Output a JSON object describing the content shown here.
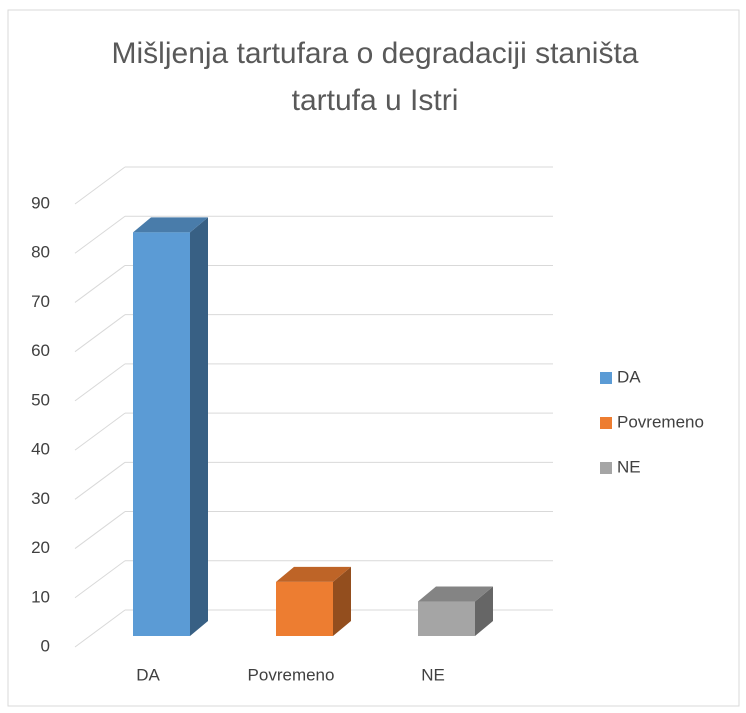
{
  "chart_data": {
    "type": "bar3d",
    "title": "Mišljenja tartufara o degradaciji staništa tartufa u Istri",
    "categories": [
      "DA",
      "Povremeno",
      "NE"
    ],
    "values": [
      82,
      11,
      7
    ],
    "colors": [
      "#5b9bd5",
      "#ed7d31",
      "#a5a5a5"
    ],
    "ylim": [
      0,
      90
    ],
    "yticks": [
      0,
      10,
      20,
      30,
      40,
      50,
      60,
      70,
      80,
      90
    ],
    "grid": true,
    "legend": "right"
  }
}
